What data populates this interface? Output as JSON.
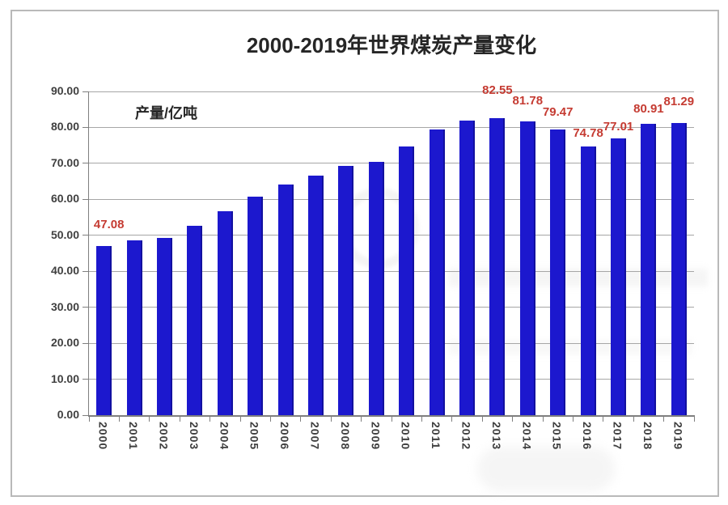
{
  "chart_data": {
    "type": "bar",
    "title": "2000-2019年世界煤炭产量变化",
    "legend": {
      "label": "产量/亿吨",
      "swatch_color": "#1c18ce"
    },
    "categories": [
      "2000",
      "2001",
      "2002",
      "2003",
      "2004",
      "2005",
      "2006",
      "2007",
      "2008",
      "2009",
      "2010",
      "2011",
      "2012",
      "2013",
      "2014",
      "2015",
      "2016",
      "2017",
      "2018",
      "2019"
    ],
    "values": [
      47.08,
      48.6,
      49.3,
      52.7,
      56.6,
      60.7,
      64.2,
      66.7,
      69.2,
      70.4,
      74.7,
      79.4,
      81.9,
      82.55,
      81.78,
      79.47,
      74.78,
      77.01,
      80.91,
      81.29
    ],
    "data_labels": [
      {
        "category": "2000",
        "text": "47.08"
      },
      {
        "category": "2013",
        "text": "82.55"
      },
      {
        "category": "2014",
        "text": "81.78"
      },
      {
        "category": "2015",
        "text": "79.47"
      },
      {
        "category": "2016",
        "text": "74.78"
      },
      {
        "category": "2017",
        "text": "77.01"
      },
      {
        "category": "2018",
        "text": "80.91"
      },
      {
        "category": "2019",
        "text": "81.29"
      }
    ],
    "yticks": [
      "0.00",
      "10.00",
      "20.00",
      "30.00",
      "40.00",
      "50.00",
      "60.00",
      "70.00",
      "80.00",
      "90.00"
    ],
    "ylim": [
      0,
      90
    ],
    "ytick_step": 10,
    "xlabel": "",
    "ylabel": "",
    "grid": true,
    "legend_position": "top-left-inside",
    "x_label_rotation_deg": 90,
    "colors": {
      "bar": "#1c18ce",
      "data_label": "#c53b32",
      "grid": "#a6a6a6",
      "axis": "#7f7f7f",
      "tick_label": "#3f3f3f",
      "title": "#262626"
    }
  }
}
